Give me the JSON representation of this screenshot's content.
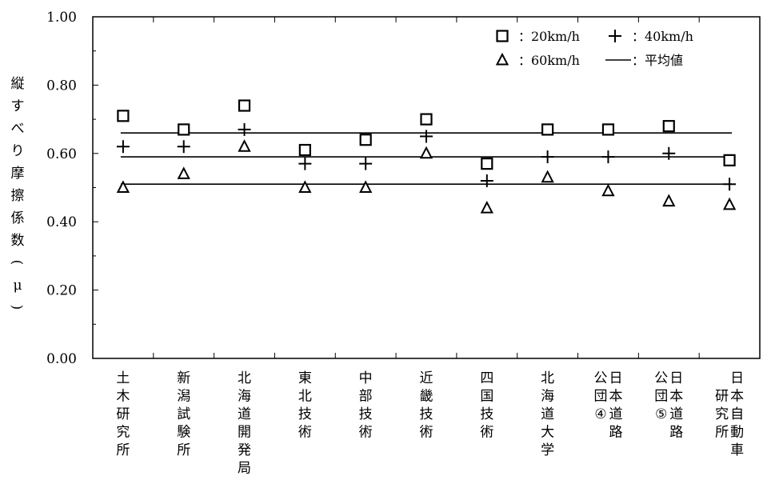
{
  "chart_data": {
    "type": "scatter",
    "title": "",
    "ylabel": "縦すべり摩擦係数（μ）",
    "xlabel": "",
    "ylim": [
      0,
      1.0
    ],
    "yticks": [
      "0.00",
      "0.20",
      "0.40",
      "0.60",
      "0.80",
      "1.00"
    ],
    "grid": false,
    "legend_position": "top-right",
    "categories": [
      {
        "name": "土木研究所",
        "lines": [
          "土木研究所"
        ]
      },
      {
        "name": "新潟試験所",
        "lines": [
          "新潟試験所"
        ]
      },
      {
        "name": "北海道開発局",
        "lines": [
          "北海道開発局"
        ]
      },
      {
        "name": "東北技術",
        "lines": [
          "東北技術"
        ]
      },
      {
        "name": "中部技術",
        "lines": [
          "中部技術"
        ]
      },
      {
        "name": "近畿技術",
        "lines": [
          "近畿技術"
        ]
      },
      {
        "name": "四国技術",
        "lines": [
          "四国技術"
        ]
      },
      {
        "name": "北海道大学",
        "lines": [
          "北海道大学"
        ]
      },
      {
        "name": "日本道路公団④",
        "lines": [
          "日本道路",
          "公団④"
        ]
      },
      {
        "name": "日本道路公団⑤",
        "lines": [
          "日本道路",
          "公団⑤"
        ]
      },
      {
        "name": "日本自動車研究所",
        "lines": [
          "日本自動車",
          "研究所"
        ]
      }
    ],
    "series": [
      {
        "name": "20km/h",
        "legend_label": "：20km/h",
        "marker": "square",
        "values": [
          0.71,
          0.67,
          0.74,
          0.61,
          0.64,
          0.7,
          0.57,
          0.67,
          0.67,
          0.68,
          0.58
        ]
      },
      {
        "name": "40km/h",
        "legend_label": "：40km/h",
        "marker": "plus",
        "values": [
          0.62,
          0.62,
          0.67,
          0.57,
          0.57,
          0.65,
          0.52,
          0.59,
          0.59,
          0.6,
          0.51
        ]
      },
      {
        "name": "60km/h",
        "legend_label": "：60km/h",
        "marker": "triangle",
        "values": [
          0.5,
          0.54,
          0.62,
          0.5,
          0.5,
          0.6,
          0.44,
          0.53,
          0.49,
          0.46,
          0.45
        ]
      }
    ],
    "average_lines": {
      "name": "平均値",
      "legend_label": "：平均値",
      "values": [
        0.66,
        0.59,
        0.51
      ]
    }
  }
}
